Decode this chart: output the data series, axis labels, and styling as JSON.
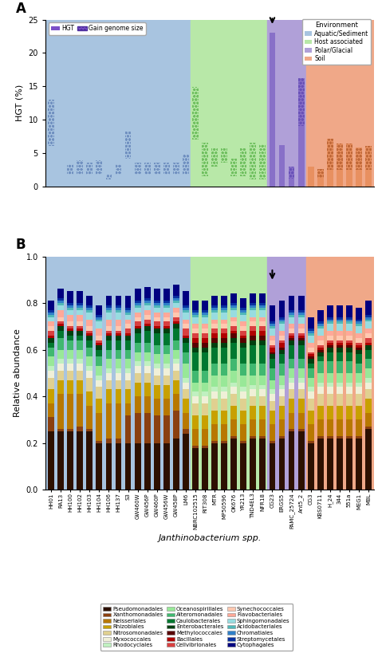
{
  "panel_a": {
    "samples": [
      "HH01",
      "RA13",
      "HH100",
      "HH102",
      "HH103",
      "HH104",
      "HH106",
      "HH137",
      "S3",
      "GW460W",
      "GW456P",
      "GW460P",
      "GW456W",
      "GW458P",
      "LM6",
      "NBRC102515",
      "RIT308",
      "MTR",
      "MP50596",
      "OK676",
      "YR213",
      "TND4EL3",
      "NFR18",
      "CG23",
      "ERGS5",
      "PAMC_25724",
      "Ant5_2",
      "CG3",
      "KBS0711",
      "H_24",
      "344",
      "551a",
      "MEG1",
      "MBL"
    ],
    "hgt_values": [
      6.0,
      5.4,
      1.7,
      1.7,
      1.7,
      1.7,
      1.0,
      1.7,
      4.2,
      1.7,
      1.7,
      1.7,
      1.7,
      1.7,
      1.7,
      7.0,
      1.5,
      3.0,
      3.5,
      1.5,
      1.5,
      1.0,
      1.0,
      23.0,
      6.2,
      1.2,
      9.0,
      3.0,
      1.3,
      2.5,
      2.5,
      2.5,
      2.5,
      2.5
    ],
    "genome_values": [
      13.0,
      5.4,
      3.3,
      3.9,
      3.5,
      3.9,
      1.7,
      3.3,
      8.2,
      3.6,
      3.6,
      3.6,
      3.5,
      3.5,
      4.7,
      14.9,
      6.5,
      5.7,
      5.8,
      4.2,
      5.7,
      6.5,
      6.3,
      23.0,
      6.2,
      2.9,
      16.2,
      3.0,
      2.6,
      7.1,
      6.4,
      6.4,
      5.8,
      6.0
    ],
    "environments": [
      "aquatic",
      "aquatic",
      "aquatic",
      "aquatic",
      "aquatic",
      "aquatic",
      "aquatic",
      "aquatic",
      "aquatic",
      "aquatic",
      "aquatic",
      "aquatic",
      "aquatic",
      "aquatic",
      "aquatic",
      "host",
      "host",
      "host",
      "host",
      "host",
      "host",
      "host",
      "host",
      "polar",
      "polar",
      "polar",
      "polar",
      "soil",
      "soil",
      "soil",
      "soil",
      "soil",
      "soil",
      "soil"
    ],
    "env_colors": {
      "aquatic": "#a8c4e0",
      "host": "#b8e8a8",
      "polar": "#b0a0d8",
      "soil": "#f0a888"
    },
    "arrow_index": 23,
    "ylim": [
      0,
      25
    ],
    "yticks": [
      0,
      5,
      10,
      15,
      20,
      25
    ]
  },
  "panel_b": {
    "samples": [
      "HH01",
      "RA13",
      "HH100",
      "HH102",
      "HH103",
      "HH104",
      "HH106",
      "HH137",
      "S3",
      "GW460W",
      "GW456P",
      "GW460P",
      "GW456W",
      "GW458P",
      "LM6",
      "NBRC102515",
      "RIT308",
      "MTR",
      "MP50596",
      "OK676",
      "YR213",
      "TND4EL3",
      "NFR18",
      "CG23",
      "ERGS5",
      "PAMC_25724",
      "Ant5_2",
      "CG3",
      "KBS0711",
      "H_24",
      "344",
      "551a",
      "MEG1",
      "MBL"
    ],
    "environments": [
      "aquatic",
      "aquatic",
      "aquatic",
      "aquatic",
      "aquatic",
      "aquatic",
      "aquatic",
      "aquatic",
      "aquatic",
      "aquatic",
      "aquatic",
      "aquatic",
      "aquatic",
      "aquatic",
      "aquatic",
      "host",
      "host",
      "host",
      "host",
      "host",
      "host",
      "host",
      "host",
      "polar",
      "polar",
      "polar",
      "polar",
      "soil",
      "soil",
      "soil",
      "soil",
      "soil",
      "soil",
      "soil"
    ],
    "taxa": [
      "Pseudomonadales",
      "Xanthomonadales",
      "Neisseriales",
      "Rhizobiales",
      "Nitrosomonadales",
      "Myxococcales",
      "Rhodocyclales",
      "Oceanospirillales",
      "Alteromonadales",
      "Caulobacterales",
      "Enterobacterales",
      "Methylococcales",
      "Bacillales",
      "Cellvibrionales",
      "Synechococcales",
      "Flavobacteriales",
      "Sphingomonadales",
      "Acidobacteriales",
      "Chromatiales",
      "Streptomycetales",
      "Cytophagales"
    ],
    "taxa_colors": [
      "#2d1000",
      "#8B4010",
      "#b87800",
      "#c8a000",
      "#e0d090",
      "#f0f0d8",
      "#c0f0c0",
      "#98e898",
      "#40b870",
      "#007830",
      "#004010",
      "#580000",
      "#b00000",
      "#d84040",
      "#ffc8b0",
      "#ffa898",
      "#98dce0",
      "#50b8b8",
      "#3080c8",
      "#0830a0",
      "#000080"
    ],
    "stacked_data": [
      [
        0.25,
        0.25,
        0.25,
        0.25,
        0.25,
        0.2,
        0.2,
        0.2,
        0.2,
        0.2,
        0.2,
        0.2,
        0.2,
        0.22,
        0.24,
        0.18,
        0.18,
        0.2,
        0.2,
        0.22,
        0.2,
        0.22,
        0.22,
        0.2,
        0.22,
        0.25,
        0.25,
        0.2,
        0.22,
        0.22,
        0.22,
        0.22,
        0.22,
        0.26
      ],
      [
        0.06,
        0.01,
        0.01,
        0.02,
        0.01,
        0.01,
        0.02,
        0.02,
        0.12,
        0.13,
        0.13,
        0.12,
        0.12,
        0.12,
        0.02,
        0.01,
        0.01,
        0.01,
        0.01,
        0.01,
        0.01,
        0.01,
        0.01,
        0.01,
        0.01,
        0.01,
        0.01,
        0.01,
        0.01,
        0.01,
        0.01,
        0.01,
        0.01,
        0.01
      ],
      [
        0.06,
        0.15,
        0.15,
        0.14,
        0.1,
        0.12,
        0.15,
        0.15,
        0.05,
        0.07,
        0.07,
        0.07,
        0.07,
        0.07,
        0.07,
        0.07,
        0.07,
        0.07,
        0.07,
        0.07,
        0.07,
        0.07,
        0.07,
        0.07,
        0.07,
        0.07,
        0.07,
        0.07,
        0.07,
        0.07,
        0.07,
        0.07,
        0.07,
        0.06
      ],
      [
        0.06,
        0.06,
        0.06,
        0.06,
        0.06,
        0.06,
        0.06,
        0.06,
        0.06,
        0.06,
        0.06,
        0.06,
        0.06,
        0.06,
        0.06,
        0.06,
        0.06,
        0.06,
        0.06,
        0.06,
        0.06,
        0.06,
        0.06,
        0.06,
        0.06,
        0.06,
        0.06,
        0.06,
        0.06,
        0.06,
        0.06,
        0.06,
        0.06,
        0.06
      ],
      [
        0.05,
        0.04,
        0.04,
        0.04,
        0.06,
        0.05,
        0.04,
        0.04,
        0.04,
        0.04,
        0.04,
        0.04,
        0.04,
        0.04,
        0.04,
        0.05,
        0.05,
        0.05,
        0.05,
        0.05,
        0.05,
        0.04,
        0.04,
        0.04,
        0.04,
        0.04,
        0.04,
        0.05,
        0.05,
        0.05,
        0.05,
        0.05,
        0.05,
        0.04
      ],
      [
        0.03,
        0.03,
        0.03,
        0.03,
        0.03,
        0.03,
        0.03,
        0.03,
        0.03,
        0.03,
        0.03,
        0.03,
        0.03,
        0.03,
        0.03,
        0.03,
        0.03,
        0.03,
        0.03,
        0.03,
        0.03,
        0.03,
        0.03,
        0.03,
        0.03,
        0.03,
        0.03,
        0.03,
        0.03,
        0.03,
        0.03,
        0.03,
        0.03,
        0.03
      ],
      [
        0.02,
        0.02,
        0.02,
        0.02,
        0.02,
        0.02,
        0.02,
        0.02,
        0.02,
        0.02,
        0.02,
        0.02,
        0.02,
        0.02,
        0.02,
        0.02,
        0.02,
        0.02,
        0.02,
        0.02,
        0.02,
        0.02,
        0.02,
        0.02,
        0.02,
        0.02,
        0.02,
        0.02,
        0.02,
        0.02,
        0.02,
        0.02,
        0.02,
        0.02
      ],
      [
        0.04,
        0.04,
        0.04,
        0.04,
        0.04,
        0.04,
        0.04,
        0.04,
        0.04,
        0.04,
        0.04,
        0.04,
        0.04,
        0.04,
        0.06,
        0.04,
        0.04,
        0.05,
        0.05,
        0.05,
        0.05,
        0.04,
        0.04,
        0.04,
        0.04,
        0.04,
        0.04,
        0.04,
        0.04,
        0.04,
        0.04,
        0.04,
        0.04,
        0.04
      ],
      [
        0.04,
        0.05,
        0.04,
        0.04,
        0.04,
        0.04,
        0.04,
        0.04,
        0.04,
        0.04,
        0.04,
        0.04,
        0.04,
        0.04,
        0.05,
        0.05,
        0.05,
        0.05,
        0.05,
        0.05,
        0.05,
        0.05,
        0.05,
        0.05,
        0.05,
        0.04,
        0.04,
        0.04,
        0.05,
        0.05,
        0.05,
        0.05,
        0.04,
        0.04
      ],
      [
        0.02,
        0.03,
        0.02,
        0.02,
        0.03,
        0.03,
        0.04,
        0.04,
        0.04,
        0.04,
        0.05,
        0.05,
        0.05,
        0.05,
        0.04,
        0.08,
        0.08,
        0.07,
        0.07,
        0.07,
        0.07,
        0.08,
        0.08,
        0.04,
        0.04,
        0.06,
        0.06,
        0.02,
        0.02,
        0.04,
        0.04,
        0.04,
        0.04,
        0.04
      ],
      [
        0.02,
        0.02,
        0.02,
        0.02,
        0.02,
        0.02,
        0.02,
        0.02,
        0.02,
        0.02,
        0.02,
        0.02,
        0.02,
        0.02,
        0.02,
        0.02,
        0.02,
        0.02,
        0.02,
        0.02,
        0.02,
        0.02,
        0.02,
        0.02,
        0.02,
        0.02,
        0.02,
        0.02,
        0.02,
        0.02,
        0.02,
        0.02,
        0.02,
        0.02
      ],
      [
        0.0,
        0.0,
        0.0,
        0.0,
        0.0,
        0.0,
        0.0,
        0.0,
        0.0,
        0.0,
        0.0,
        0.0,
        0.0,
        0.0,
        0.0,
        0.02,
        0.02,
        0.02,
        0.02,
        0.02,
        0.02,
        0.02,
        0.02,
        0.01,
        0.01,
        0.01,
        0.01,
        0.01,
        0.01,
        0.01,
        0.01,
        0.01,
        0.01,
        0.0
      ],
      [
        0.01,
        0.01,
        0.01,
        0.01,
        0.01,
        0.01,
        0.01,
        0.01,
        0.01,
        0.01,
        0.01,
        0.01,
        0.01,
        0.01,
        0.01,
        0.02,
        0.02,
        0.02,
        0.02,
        0.01,
        0.01,
        0.02,
        0.02,
        0.02,
        0.02,
        0.01,
        0.01,
        0.01,
        0.01,
        0.01,
        0.01,
        0.01,
        0.01,
        0.01
      ],
      [
        0.02,
        0.01,
        0.01,
        0.01,
        0.01,
        0.01,
        0.01,
        0.01,
        0.02,
        0.02,
        0.02,
        0.02,
        0.02,
        0.02,
        0.03,
        0.02,
        0.02,
        0.02,
        0.02,
        0.02,
        0.02,
        0.02,
        0.02,
        0.01,
        0.01,
        0.01,
        0.01,
        0.01,
        0.01,
        0.01,
        0.01,
        0.01,
        0.01,
        0.02
      ],
      [
        0.02,
        0.02,
        0.02,
        0.02,
        0.02,
        0.02,
        0.02,
        0.02,
        0.02,
        0.02,
        0.02,
        0.02,
        0.02,
        0.02,
        0.02,
        0.02,
        0.02,
        0.02,
        0.02,
        0.02,
        0.02,
        0.02,
        0.02,
        0.02,
        0.02,
        0.02,
        0.02,
        0.02,
        0.02,
        0.02,
        0.02,
        0.02,
        0.02,
        0.02
      ],
      [
        0.02,
        0.03,
        0.03,
        0.03,
        0.03,
        0.03,
        0.03,
        0.03,
        0.02,
        0.02,
        0.02,
        0.02,
        0.02,
        0.02,
        0.02,
        0.02,
        0.02,
        0.02,
        0.02,
        0.02,
        0.02,
        0.02,
        0.02,
        0.02,
        0.02,
        0.02,
        0.02,
        0.02,
        0.02,
        0.02,
        0.02,
        0.02,
        0.02,
        0.02
      ],
      [
        0.02,
        0.02,
        0.02,
        0.02,
        0.03,
        0.03,
        0.03,
        0.03,
        0.02,
        0.02,
        0.02,
        0.02,
        0.02,
        0.02,
        0.03,
        0.03,
        0.03,
        0.03,
        0.03,
        0.03,
        0.03,
        0.03,
        0.03,
        0.03,
        0.03,
        0.03,
        0.03,
        0.03,
        0.03,
        0.03,
        0.03,
        0.03,
        0.03,
        0.03
      ],
      [
        0.01,
        0.01,
        0.01,
        0.01,
        0.01,
        0.01,
        0.01,
        0.01,
        0.01,
        0.01,
        0.01,
        0.01,
        0.01,
        0.01,
        0.01,
        0.01,
        0.01,
        0.01,
        0.01,
        0.01,
        0.01,
        0.01,
        0.01,
        0.01,
        0.01,
        0.01,
        0.01,
        0.01,
        0.01,
        0.01,
        0.01,
        0.01,
        0.01,
        0.01
      ],
      [
        0.01,
        0.01,
        0.01,
        0.01,
        0.01,
        0.01,
        0.01,
        0.01,
        0.01,
        0.01,
        0.01,
        0.01,
        0.01,
        0.01,
        0.01,
        0.01,
        0.01,
        0.01,
        0.01,
        0.01,
        0.01,
        0.01,
        0.01,
        0.01,
        0.01,
        0.01,
        0.01,
        0.01,
        0.01,
        0.01,
        0.01,
        0.01,
        0.01,
        0.01
      ],
      [
        0.01,
        0.01,
        0.01,
        0.01,
        0.01,
        0.01,
        0.01,
        0.01,
        0.01,
        0.01,
        0.01,
        0.01,
        0.01,
        0.01,
        0.01,
        0.01,
        0.01,
        0.01,
        0.01,
        0.01,
        0.01,
        0.01,
        0.01,
        0.01,
        0.01,
        0.01,
        0.01,
        0.01,
        0.01,
        0.01,
        0.01,
        0.01,
        0.01,
        0.01
      ],
      [
        0.04,
        0.04,
        0.05,
        0.05,
        0.04,
        0.04,
        0.04,
        0.04,
        0.05,
        0.05,
        0.05,
        0.05,
        0.05,
        0.05,
        0.06,
        0.04,
        0.04,
        0.04,
        0.04,
        0.04,
        0.04,
        0.04,
        0.04,
        0.07,
        0.07,
        0.06,
        0.06,
        0.05,
        0.05,
        0.05,
        0.05,
        0.05,
        0.05,
        0.06
      ]
    ]
  },
  "legend_taxa": [
    [
      "Pseudomonadales",
      "#2d1000"
    ],
    [
      "Xanthomonadales",
      "#8B4010"
    ],
    [
      "Neisseriales",
      "#b87800"
    ],
    [
      "Rhizobiales",
      "#c8a000"
    ],
    [
      "Nitrosomonadales",
      "#e0d090"
    ],
    [
      "Myxococcales",
      "#f0f0d8"
    ],
    [
      "Rhodocyclales",
      "#c0f0c0"
    ],
    [
      "Oceanospirillales",
      "#98e898"
    ],
    [
      "Alteromonadales",
      "#40b870"
    ],
    [
      "Caulobacterales",
      "#007830"
    ],
    [
      "Enterobacterales",
      "#004010"
    ],
    [
      "Methylococcales",
      "#580000"
    ],
    [
      "Bacillales",
      "#b00000"
    ],
    [
      "Cellvibrionales",
      "#d84040"
    ],
    [
      "Synechococcales",
      "#ffc8b0"
    ],
    [
      "Flavobacteriales",
      "#ffa898"
    ],
    [
      "Sphingomonadales",
      "#98dce0"
    ],
    [
      "Acidobacteriales",
      "#50b8b8"
    ],
    [
      "Chromatiales",
      "#3080c8"
    ],
    [
      "Streptomycetales",
      "#0830a0"
    ],
    [
      "Cytophagales",
      "#000080"
    ]
  ],
  "env_colors": {
    "aquatic": "#a8c4e0",
    "host": "#b8e8a8",
    "polar": "#b0a0d8",
    "soil": "#f0a888"
  }
}
